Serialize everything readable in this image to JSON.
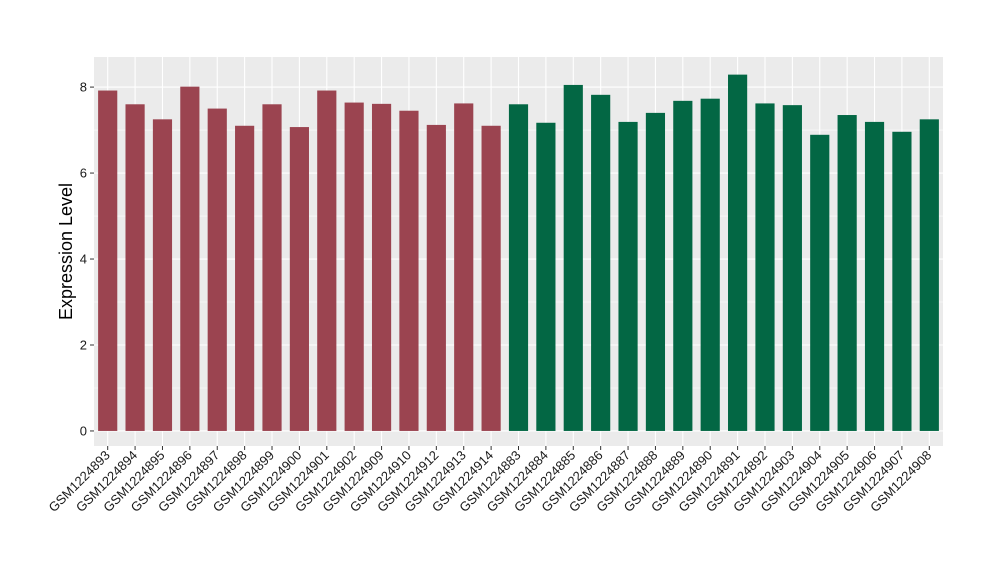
{
  "chart_data": {
    "type": "bar",
    "ylabel": "Expression Level",
    "xlabel": "",
    "ylim": [
      -0.35,
      8.7
    ],
    "yticks": [
      0,
      2,
      4,
      6,
      8
    ],
    "grid": true,
    "legend": "none",
    "colors": {
      "panel_bg": "#ebebeb",
      "grid_major": "#ffffff",
      "group1": "#9b4450",
      "group2": "#036744"
    },
    "categories": [
      "GSM1224893",
      "GSM1224894",
      "GSM1224895",
      "GSM1224896",
      "GSM1224897",
      "GSM1224898",
      "GSM1224899",
      "GSM1224900",
      "GSM1224901",
      "GSM1224902",
      "GSM1224909",
      "GSM1224910",
      "GSM1224912",
      "GSM1224913",
      "GSM1224914",
      "GSM1224883",
      "GSM1224884",
      "GSM1224885",
      "GSM1224886",
      "GSM1224887",
      "GSM1224888",
      "GSM1224889",
      "GSM1224890",
      "GSM1224891",
      "GSM1224892",
      "GSM1224903",
      "GSM1224904",
      "GSM1224905",
      "GSM1224906",
      "GSM1224907",
      "GSM1224908"
    ],
    "values": [
      7.92,
      7.6,
      7.25,
      8.01,
      7.5,
      7.1,
      7.6,
      7.07,
      7.92,
      7.64,
      7.61,
      7.45,
      7.12,
      7.62,
      7.1,
      7.6,
      7.17,
      8.05,
      7.82,
      7.19,
      7.4,
      7.68,
      7.73,
      8.29,
      7.62,
      7.58,
      6.89,
      7.35,
      7.19,
      6.96,
      7.25
    ],
    "group": [
      1,
      1,
      1,
      1,
      1,
      1,
      1,
      1,
      1,
      1,
      1,
      1,
      1,
      1,
      1,
      2,
      2,
      2,
      2,
      2,
      2,
      2,
      2,
      2,
      2,
      2,
      2,
      2,
      2,
      2,
      2
    ]
  }
}
